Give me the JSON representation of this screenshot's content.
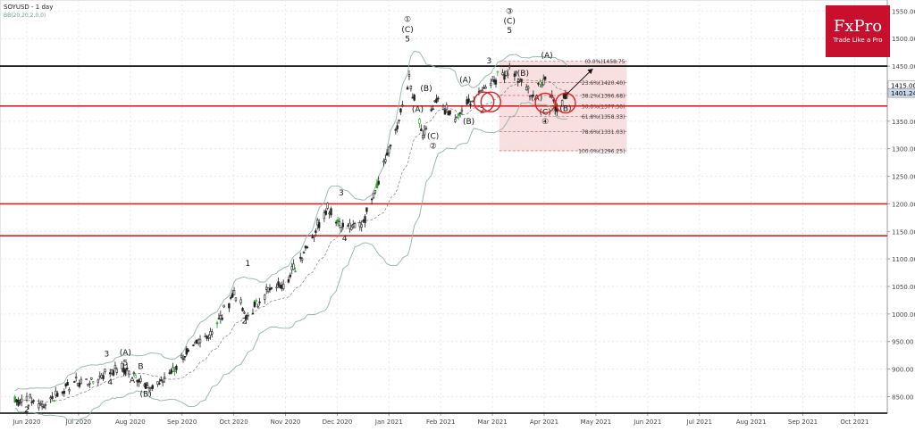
{
  "header": {
    "symbol_title": "SOYUSD - 1 day",
    "indicator_label": "BB(20,20,2,0,0)"
  },
  "logo": {
    "brand": "FxPro",
    "tagline": "Trade Like a Pro",
    "color": "#c8102e"
  },
  "colors": {
    "candle": "#222222",
    "candle_green": "#22aa22",
    "bollinger": "#8fb3a3",
    "support_line": "#e02020",
    "resistance_line": "#000000",
    "fib_fill": "#f5d6d6",
    "fib_line": "#cc6666",
    "circle": "#e02020"
  },
  "price_labels": {
    "last_price": "1415.00",
    "bid_price": "1401.24"
  },
  "fib_levels": [
    {
      "label": "(0.0%)1458.75",
      "price": 1458.75
    },
    {
      "label": "23.6%(1420.40)",
      "price": 1420.4
    },
    {
      "label": "38.2%(1396.68)",
      "price": 1396.68
    },
    {
      "label": "50.0%(1377.50)",
      "price": 1377.5
    },
    {
      "label": "61.8%(1358.33)",
      "price": 1358.33
    },
    {
      "label": "78.6%(1331.03)",
      "price": 1331.03
    },
    {
      "label": "100.0%(1296.25)",
      "price": 1296.25
    }
  ],
  "chart_data": {
    "type": "candlestick",
    "ylim": [
      820,
      1570
    ],
    "y_ticks": [
      "850.00",
      "900.00",
      "950.00",
      "1000.00",
      "1050.00",
      "1100.00",
      "1150.00",
      "1200.00",
      "1250.00",
      "1300.00",
      "1350.00",
      "1400.00",
      "1450.00",
      "1500.00",
      "1550.00"
    ],
    "x_ticks": [
      "Jun 2020",
      "Jul 2020",
      "Aug 2020",
      "Sep 2020",
      "Oct 2020",
      "Nov 2020",
      "Dec 2020",
      "Jan 2021",
      "Feb 2021",
      "Mar 2021",
      "Apr 2021",
      "May 2021",
      "Jun 2021",
      "Jul 2021",
      "Aug 2021",
      "Sep 2021",
      "Oct 2021"
    ],
    "horizontal_lines": [
      {
        "price": 1450,
        "color": "#000000"
      },
      {
        "price": 1377.5,
        "color": "#e02020"
      },
      {
        "price": 1200,
        "color": "#e02020"
      },
      {
        "price": 1142,
        "color": "#e02020"
      },
      {
        "price": 820,
        "color": "#000000"
      }
    ],
    "price_path": [
      {
        "x": "2020-06-01",
        "y": 845
      },
      {
        "x": "2020-06-10",
        "y": 835
      },
      {
        "x": "2020-06-25",
        "y": 870
      },
      {
        "x": "2020-07-10",
        "y": 880
      },
      {
        "x": "2020-07-25",
        "y": 905
      },
      {
        "x": "2020-08-05",
        "y": 885
      },
      {
        "x": "2020-08-15",
        "y": 865
      },
      {
        "x": "2020-08-25",
        "y": 895
      },
      {
        "x": "2020-09-05",
        "y": 935
      },
      {
        "x": "2020-09-20",
        "y": 975
      },
      {
        "x": "2020-10-01",
        "y": 1040
      },
      {
        "x": "2020-10-08",
        "y": 995
      },
      {
        "x": "2020-10-20",
        "y": 1040
      },
      {
        "x": "2020-11-01",
        "y": 1060
      },
      {
        "x": "2020-11-12",
        "y": 1120
      },
      {
        "x": "2020-11-25",
        "y": 1195
      },
      {
        "x": "2020-12-05",
        "y": 1155
      },
      {
        "x": "2020-12-15",
        "y": 1160
      },
      {
        "x": "2020-12-22",
        "y": 1220
      },
      {
        "x": "2021-01-05",
        "y": 1340
      },
      {
        "x": "2021-01-12",
        "y": 1425
      },
      {
        "x": "2021-01-20",
        "y": 1320
      },
      {
        "x": "2021-01-28",
        "y": 1385
      },
      {
        "x": "2021-02-08",
        "y": 1355
      },
      {
        "x": "2021-02-20",
        "y": 1395
      },
      {
        "x": "2021-03-01",
        "y": 1420
      },
      {
        "x": "2021-03-12",
        "y": 1445
      },
      {
        "x": "2021-03-25",
        "y": 1400
      },
      {
        "x": "2021-04-02",
        "y": 1430
      },
      {
        "x": "2021-04-08",
        "y": 1375
      },
      {
        "x": "2021-04-15",
        "y": 1401
      }
    ],
    "annotations": [
      {
        "text": "①",
        "x": "2021-01-11",
        "y": 1530
      },
      {
        "text": "(C)",
        "x": "2021-01-11",
        "y": 1512
      },
      {
        "text": "5",
        "x": "2021-01-11",
        "y": 1495
      },
      {
        "text": "③",
        "x": "2021-03-12",
        "y": 1545
      },
      {
        "text": "(C)",
        "x": "2021-03-12",
        "y": 1527
      },
      {
        "text": "5",
        "x": "2021-03-12",
        "y": 1510
      },
      {
        "text": "(A)",
        "x": "2021-04-03",
        "y": 1465
      },
      {
        "text": "(B)",
        "x": "2021-03-20",
        "y": 1432
      },
      {
        "text": "(A)",
        "x": "2021-03-28",
        "y": 1388
      },
      {
        "text": "(C)",
        "x": "2021-04-02",
        "y": 1362
      },
      {
        "text": "④",
        "x": "2021-04-02",
        "y": 1345
      },
      {
        "text": "(B)",
        "x": "2021-04-14",
        "y": 1368
      },
      {
        "text": "(A)",
        "x": "2021-02-14",
        "y": 1420
      },
      {
        "text": "(B)",
        "x": "2021-02-16",
        "y": 1345
      },
      {
        "text": "(C)",
        "x": "2021-01-26",
        "y": 1318
      },
      {
        "text": "②",
        "x": "2021-01-26",
        "y": 1300
      },
      {
        "text": "(B)",
        "x": "2021-01-22",
        "y": 1405
      },
      {
        "text": "(A)",
        "x": "2021-01-17",
        "y": 1367
      },
      {
        "text": "3",
        "x": "2020-12-03",
        "y": 1215
      },
      {
        "text": "4",
        "x": "2020-12-05",
        "y": 1133
      },
      {
        "text": "1",
        "x": "2020-10-09",
        "y": 1087
      },
      {
        "text": "2",
        "x": "2020-10-07",
        "y": 983
      },
      {
        "text": "3",
        "x": "2020-07-18",
        "y": 923
      },
      {
        "text": "5",
        "x": "2020-07-29",
        "y": 907
      },
      {
        "text": "(A)",
        "x": "2020-07-29",
        "y": 925
      },
      {
        "text": "4",
        "x": "2020-07-20",
        "y": 872
      },
      {
        "text": "B",
        "x": "2020-08-07",
        "y": 900
      },
      {
        "text": "A",
        "x": "2020-08-02",
        "y": 875
      },
      {
        "text": "C",
        "x": "2020-08-10",
        "y": 865
      },
      {
        "text": "(B)",
        "x": "2020-08-10",
        "y": 850
      },
      {
        "text": "2",
        "x": "2020-06-01",
        "y": 822
      },
      {
        "text": "3",
        "x": "2021-02-28",
        "y": 1455
      },
      {
        "text": "2",
        "x": "2021-02-24",
        "y": 1365
      }
    ]
  }
}
